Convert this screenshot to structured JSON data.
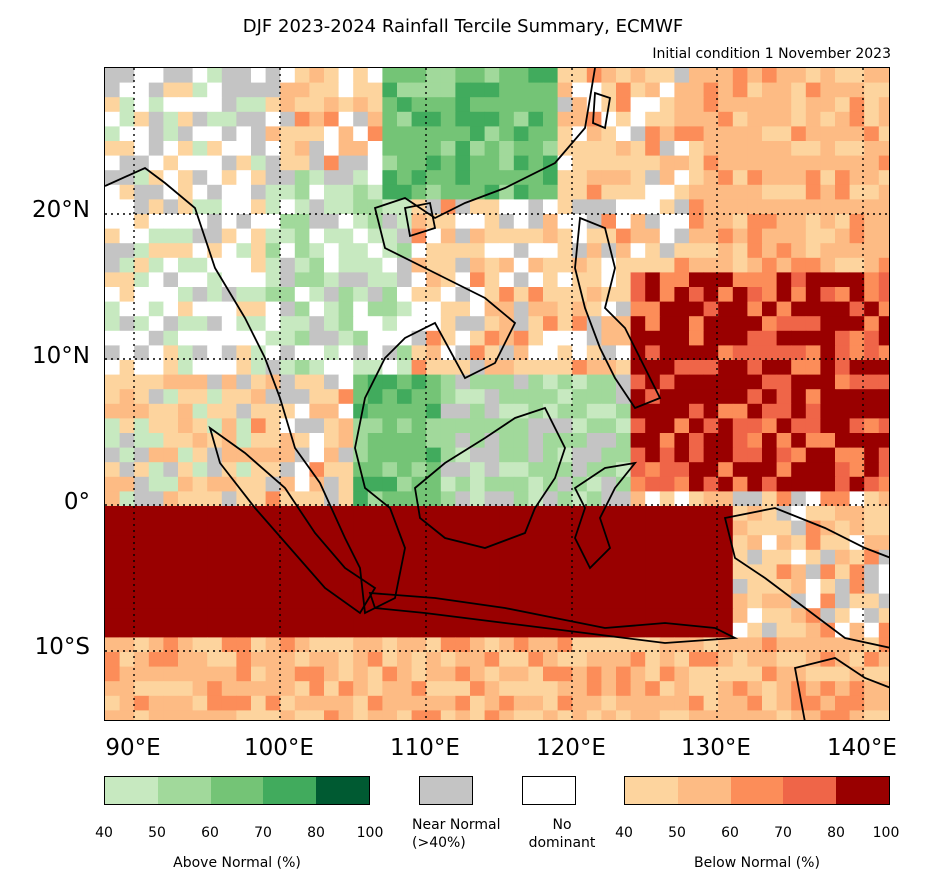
{
  "title": "DJF 2023-2024 Rainfall Tercile Summary, ECMWF",
  "subtitle": "Initial condition 1 November 2023",
  "axes": {
    "lat_labels": [
      "20°N",
      "10°N",
      "0°",
      "10°S"
    ],
    "lon_labels": [
      "90°E",
      "100°E",
      "110°E",
      "120°E",
      "130°E",
      "140°E"
    ]
  },
  "legend": {
    "above_normal": {
      "label": "Above Normal (%)",
      "ticks": [
        "40",
        "50",
        "60",
        "70",
        "80",
        "100"
      ],
      "colors": [
        "#c7e9c0",
        "#a1d99b",
        "#74c476",
        "#41ab5d",
        "#005a32"
      ]
    },
    "near_normal": {
      "label_line1": "Near Normal",
      "label_line2": "(>40%)",
      "color": "#c4c4c4"
    },
    "no_dominant": {
      "label_line1": "No",
      "label_line2": "dominant",
      "color": "#ffffff"
    },
    "below_normal": {
      "label": "Below Normal (%)",
      "ticks": [
        "40",
        "50",
        "60",
        "70",
        "80",
        "100"
      ],
      "colors": [
        "#fdd49e",
        "#fdbb84",
        "#fc8d59",
        "#ef6548",
        "#990000"
      ]
    }
  },
  "map_colors": {
    "ocean_default": "#fdbb84",
    "coast": "#000000"
  }
}
